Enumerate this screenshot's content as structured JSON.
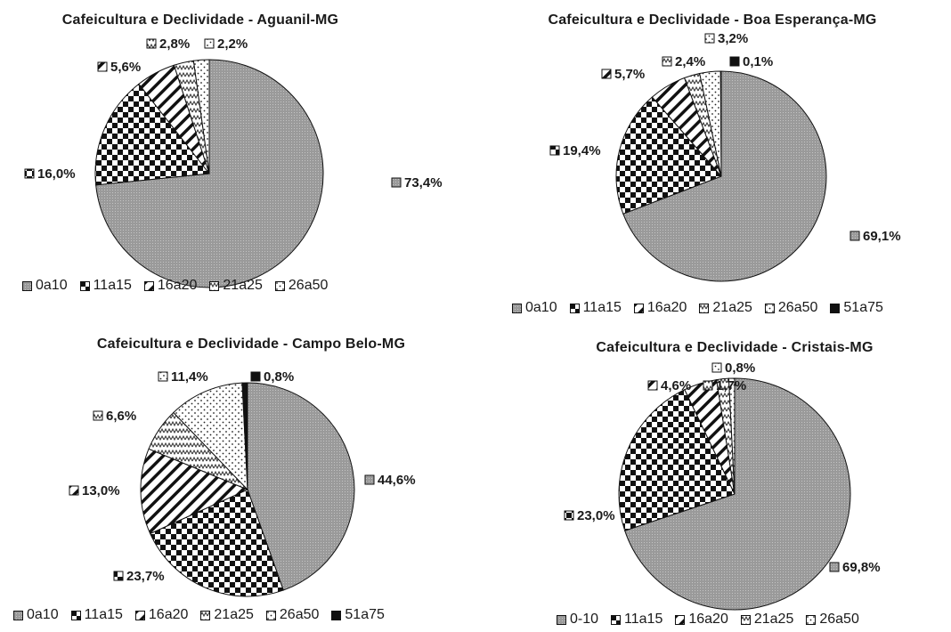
{
  "colors": {
    "0a10": "#a8a8a8",
    "11a15": "#222222",
    "16a20": "#222222",
    "21a25": "#777777",
    "26a50": "#555555",
    "51a75": "#111111"
  },
  "chart_data": [
    {
      "type": "pie",
      "title": "Cafeicultura e Declividade - Aguanil-MG",
      "categories": [
        "0a10",
        "11a15",
        "16a20",
        "21a25",
        "26a50"
      ],
      "values": [
        73.4,
        16.0,
        5.6,
        2.8,
        2.2
      ],
      "labels": [
        "73,4%",
        "16,0%",
        "5,6%",
        "2,8%",
        "2,2%"
      ],
      "legend": [
        "0a10",
        "11a15",
        "16a20",
        "21a25",
        "26a50"
      ],
      "legend_position": "bottom"
    },
    {
      "type": "pie",
      "title": "Cafeicultura e Declividade - Boa Esperança-MG",
      "categories": [
        "0a10",
        "11a15",
        "16a20",
        "21a25",
        "26a50",
        "51a75"
      ],
      "values": [
        69.1,
        19.4,
        5.7,
        2.4,
        3.2,
        0.1
      ],
      "labels": [
        "69,1%",
        "19,4%",
        "5,7%",
        "2,4%",
        "3,2%",
        "0,1%"
      ],
      "legend": [
        "0a10",
        "11a15",
        "16a20",
        "21a25",
        "26a50",
        "51a75"
      ],
      "legend_position": "bottom"
    },
    {
      "type": "pie",
      "title": "Cafeicultura e Declividade - Campo Belo-MG",
      "categories": [
        "0a10",
        "11a15",
        "16a20",
        "21a25",
        "26a50",
        "51a75"
      ],
      "values": [
        44.6,
        23.7,
        13.0,
        6.6,
        11.4,
        0.8
      ],
      "labels": [
        "44,6%",
        "23,7%",
        "13,0%",
        "6,6%",
        "11,4%",
        "0,8%"
      ],
      "legend": [
        "0a10",
        "11a15",
        "16a20",
        "21a25",
        "26a50",
        "51a75"
      ],
      "legend_position": "bottom"
    },
    {
      "type": "pie",
      "title": "Cafeicultura e Declividade - Cristais-MG",
      "categories": [
        "0-10",
        "11a15",
        "16a20",
        "21a25",
        "26a50"
      ],
      "values": [
        69.8,
        23.0,
        4.6,
        1.7,
        0.8
      ],
      "labels": [
        "69,8%",
        "23,0%",
        "4,6%",
        "1,7%",
        "0,8%"
      ],
      "legend": [
        "0-10",
        "11a15",
        "16a20",
        "21a25",
        "26a50"
      ],
      "legend_position": "bottom"
    }
  ]
}
